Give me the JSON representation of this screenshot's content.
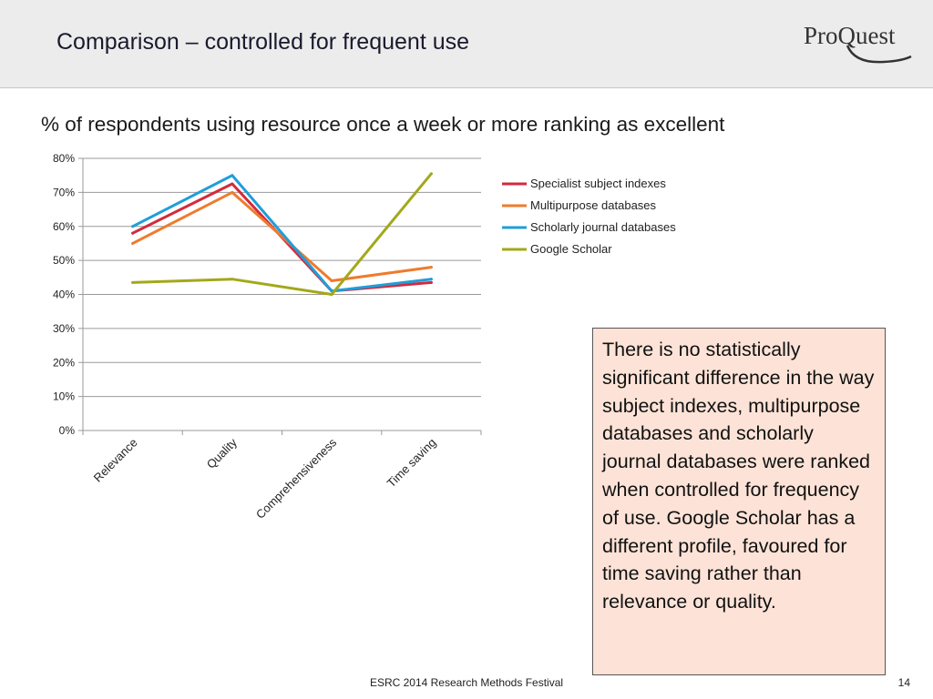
{
  "slide": {
    "title": "Comparison – controlled for frequent use",
    "subtitle": "% of respondents using resource once a week or more ranking as excellent",
    "logo_text": "ProQuest",
    "note": "There is no statistically significant difference in the way subject indexes, multipurpose databases and scholarly journal databases were ranked when controlled for frequency of use. Google Scholar has a different profile, favoured for time saving rather than relevance or quality.",
    "footer": "ESRC 2014 Research Methods Festival",
    "page_number": "14"
  },
  "chart_data": {
    "type": "line",
    "title": "",
    "xlabel": "",
    "ylabel": "",
    "categories": [
      "Relevance",
      "Quality",
      "Comprehensiveness",
      "Time saving"
    ],
    "ylim": [
      0,
      80
    ],
    "yticks": [
      "0%",
      "10%",
      "20%",
      "30%",
      "40%",
      "50%",
      "60%",
      "70%",
      "80%"
    ],
    "grid": true,
    "legend_position": "right",
    "series": [
      {
        "name": "Specialist subject indexes",
        "color": "#d42a3c",
        "values": [
          58,
          72.5,
          41,
          43.5
        ]
      },
      {
        "name": "Multipurpose databases",
        "color": "#ef7b2d",
        "values": [
          55,
          70,
          44,
          48
        ]
      },
      {
        "name": "Scholarly journal databases",
        "color": "#1f9ed9",
        "values": [
          60,
          75,
          41,
          44.5
        ]
      },
      {
        "name": "Google Scholar",
        "color": "#a3a81a",
        "values": [
          43.5,
          44.5,
          40,
          75.5
        ]
      }
    ]
  }
}
